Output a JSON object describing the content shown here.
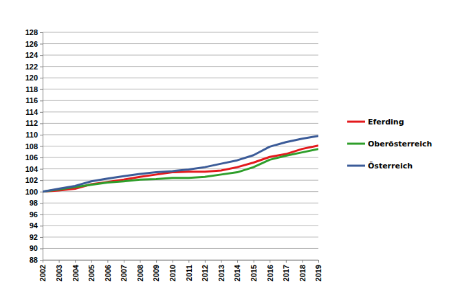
{
  "chart_data": {
    "type": "line",
    "x": [
      2002,
      2003,
      2004,
      2005,
      2006,
      2007,
      2008,
      2009,
      2010,
      2011,
      2012,
      2013,
      2014,
      2015,
      2016,
      2017,
      2018,
      2019
    ],
    "xlim": [
      2002,
      2019
    ],
    "xticks": [
      2002,
      2003,
      2004,
      2005,
      2006,
      2007,
      2008,
      2009,
      2010,
      2011,
      2012,
      2013,
      2014,
      2015,
      2016,
      2017,
      2018,
      2019
    ],
    "ylim": [
      88,
      128
    ],
    "yticks": [
      88,
      90,
      92,
      94,
      96,
      98,
      100,
      102,
      104,
      106,
      108,
      110,
      112,
      114,
      116,
      118,
      120,
      122,
      124,
      126,
      128
    ],
    "grid": true,
    "legend": "right",
    "series": [
      {
        "name": "Eferding",
        "color": "#e3191c",
        "values": [
          100,
          100.2,
          100.5,
          101.3,
          101.7,
          102.1,
          102.6,
          103.0,
          103.4,
          103.5,
          103.5,
          103.7,
          104.3,
          105.1,
          106.1,
          106.6,
          107.5,
          108.1
        ]
      },
      {
        "name": "Oberösterreich",
        "color": "#2e9e2a",
        "values": [
          100,
          100.4,
          100.8,
          101.2,
          101.6,
          101.8,
          102.1,
          102.2,
          102.4,
          102.4,
          102.6,
          103.0,
          103.4,
          104.3,
          105.6,
          106.3,
          106.9,
          107.5
        ]
      },
      {
        "name": "Österreich",
        "color": "#3b5b98",
        "values": [
          100,
          100.5,
          101.0,
          101.8,
          102.3,
          102.7,
          103.1,
          103.4,
          103.6,
          103.9,
          104.3,
          104.9,
          105.5,
          106.4,
          107.9,
          108.7,
          109.3,
          109.8
        ]
      }
    ]
  }
}
